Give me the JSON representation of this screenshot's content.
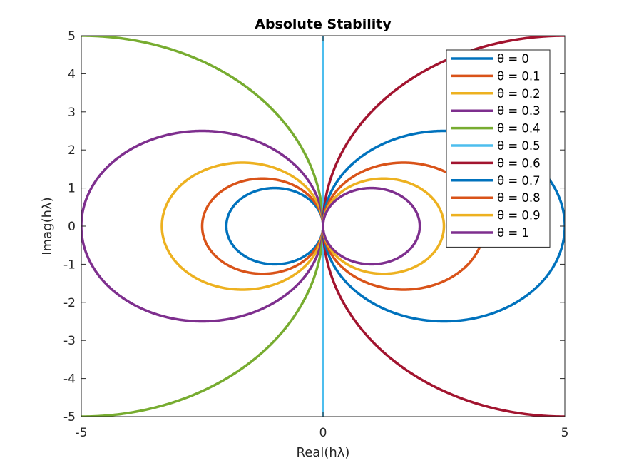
{
  "chart_data": {
    "type": "line",
    "title": "Absolute Stability",
    "xlabel": "Real(hλ)",
    "ylabel": "Imag(hλ)",
    "xlim": [
      -5,
      5
    ],
    "ylim": [
      -5,
      5
    ],
    "xticks": [
      -5,
      0,
      5
    ],
    "yticks": [
      -5,
      -4,
      -3,
      -2,
      -1,
      0,
      1,
      2,
      3,
      4,
      5
    ],
    "xtick_labels": [
      "-5",
      "0",
      "5"
    ],
    "ytick_labels": [
      "-5",
      "-4",
      "-3",
      "-2",
      "-1",
      "0",
      "1",
      "2",
      "3",
      "4",
      "5"
    ],
    "grid": false,
    "legend_position": "top-right",
    "legend_prefix": "θ = ",
    "series": [
      {
        "name": "0",
        "theta": 0.0,
        "color": "#0072BD"
      },
      {
        "name": "0.1",
        "theta": 0.1,
        "color": "#D95319"
      },
      {
        "name": "0.2",
        "theta": 0.2,
        "color": "#EDB120"
      },
      {
        "name": "0.3",
        "theta": 0.3,
        "color": "#7E2F8E"
      },
      {
        "name": "0.4",
        "theta": 0.4,
        "color": "#77AC30"
      },
      {
        "name": "0.5",
        "theta": 0.5,
        "color": "#4DBEEE"
      },
      {
        "name": "0.6",
        "theta": 0.6,
        "color": "#A2142F"
      },
      {
        "name": "0.7",
        "theta": 0.7,
        "color": "#0072BD"
      },
      {
        "name": "0.8",
        "theta": 0.8,
        "color": "#D95319"
      },
      {
        "name": "0.9",
        "theta": 0.9,
        "color": "#EDB120"
      },
      {
        "name": "1",
        "theta": 1.0,
        "color": "#7E2F8E"
      }
    ]
  }
}
